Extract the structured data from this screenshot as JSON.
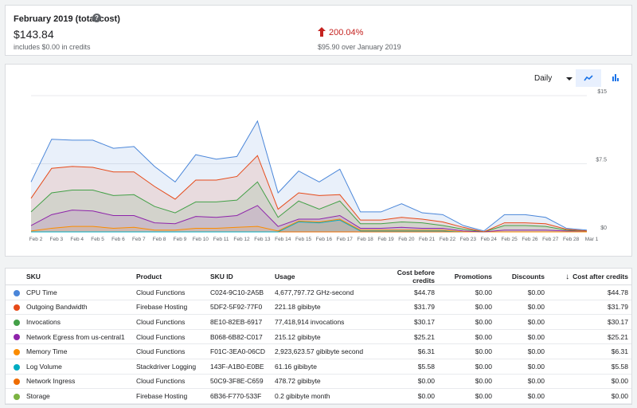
{
  "summary": {
    "title": "February 2019 (total cost)",
    "total": "$143.84",
    "credits_note": "includes $0.00 in credits",
    "trend_percent": "200.04%",
    "trend_note": "$95.90 over January 2019",
    "trend_color": "#c5221f"
  },
  "chart_controls": {
    "period": "Daily",
    "line_view_icon": "line-chart-icon",
    "bar_view_icon": "bar-chart-icon"
  },
  "chart_data": {
    "type": "area",
    "stacked": true,
    "categories": [
      "Feb 2",
      "Feb 3",
      "Feb 4",
      "Feb 5",
      "Feb 6",
      "Feb 7",
      "Feb 8",
      "Feb 9",
      "Feb 10",
      "Feb 11",
      "Feb 12",
      "Feb 13",
      "Feb 14",
      "Feb 15",
      "Feb 16",
      "Feb 17",
      "Feb 18",
      "Feb 19",
      "Feb 20",
      "Feb 21",
      "Feb 22",
      "Feb 23",
      "Feb 24",
      "Feb 25",
      "Feb 26",
      "Feb 27",
      "Feb 28",
      "Mar 1"
    ],
    "ylim": [
      0,
      15
    ],
    "yticks": [
      {
        "value": 0,
        "label": "$0"
      },
      {
        "value": 7.5,
        "label": "$7.5"
      },
      {
        "value": 15,
        "label": "$15"
      }
    ],
    "grid": true,
    "series": [
      {
        "name": "Storage",
        "color": "#7cb342",
        "values": [
          0,
          0,
          0,
          0,
          0,
          0,
          0,
          0,
          0,
          0,
          0,
          0,
          0,
          0,
          0,
          0,
          0,
          0,
          0,
          0,
          0,
          0,
          0,
          0,
          0,
          0,
          0,
          0
        ]
      },
      {
        "name": "Network Ingress",
        "color": "#ef6c00",
        "values": [
          0,
          0,
          0,
          0,
          0,
          0,
          0,
          0,
          0,
          0,
          0,
          0,
          0,
          0,
          0,
          0,
          0,
          0,
          0,
          0,
          0,
          0,
          0,
          0,
          0,
          0,
          0,
          0
        ]
      },
      {
        "name": "Log Volume",
        "color": "#00acc1",
        "values": [
          0,
          0,
          0,
          0,
          0,
          0,
          0,
          0,
          0,
          0,
          0,
          0,
          0,
          1.1,
          1.0,
          1.3,
          0.1,
          0.1,
          0.1,
          0.1,
          0.1,
          0,
          0,
          0,
          0,
          0,
          0,
          0
        ]
      },
      {
        "name": "Memory Time",
        "color": "#fb8c00",
        "values": [
          0.1,
          0.4,
          0.6,
          0.6,
          0.4,
          0.5,
          0.2,
          0.2,
          0.4,
          0.4,
          0.5,
          0.6,
          0.1,
          0.1,
          0.1,
          0.1,
          0.1,
          0.1,
          0.1,
          0.1,
          0.1,
          0,
          0,
          0,
          0,
          0,
          0,
          0
        ]
      },
      {
        "name": "Network Egress from us-central1",
        "color": "#8e24aa",
        "values": [
          0.6,
          1.5,
          1.8,
          1.7,
          1.4,
          1.3,
          0.8,
          0.7,
          1.3,
          1.2,
          1.3,
          2.3,
          0.5,
          0.2,
          0.3,
          0.4,
          0.2,
          0.2,
          0.3,
          0.2,
          0.2,
          0.1,
          0,
          0.2,
          0.2,
          0.2,
          0.1,
          0.1
        ]
      },
      {
        "name": "Invocations",
        "color": "#43a047",
        "values": [
          1.5,
          2.4,
          2.2,
          2.3,
          2.2,
          2.3,
          1.8,
          1.2,
          1.6,
          1.7,
          1.7,
          2.6,
          1.0,
          2.0,
          1.1,
          1.6,
          0.5,
          0.5,
          0.6,
          0.6,
          0.3,
          0.2,
          0,
          0.5,
          0.5,
          0.4,
          0.1,
          0
        ]
      },
      {
        "name": "Outgoing Bandwidth",
        "color": "#e64a19",
        "values": [
          1.5,
          2.7,
          2.6,
          2.5,
          2.6,
          2.5,
          2.2,
          1.5,
          2.4,
          2.4,
          2.6,
          2.9,
          0.9,
          0.9,
          1.5,
          0.7,
          0.4,
          0.4,
          0.5,
          0.4,
          0.4,
          0.2,
          0,
          0.3,
          0.3,
          0.3,
          0.1,
          0
        ]
      },
      {
        "name": "CPU Time",
        "color": "#4a86d9",
        "values": [
          1.8,
          3.2,
          2.9,
          3.0,
          2.6,
          2.8,
          2.2,
          1.9,
          2.8,
          2.3,
          2.2,
          3.8,
          1.8,
          2.4,
          1.5,
          2.8,
          0.9,
          0.9,
          1.5,
          0.7,
          0.8,
          0.2,
          0.1,
          0.9,
          0.9,
          0.7,
          0.1,
          0.1
        ]
      }
    ]
  },
  "table": {
    "sort_icon": "arrow-down-icon",
    "headers": {
      "sku": "SKU",
      "product": "Product",
      "sku_id": "SKU ID",
      "usage": "Usage",
      "cost_before": "Cost before credits",
      "promotions": "Promotions",
      "discounts": "Discounts",
      "cost_after": "Cost after credits"
    },
    "rows": [
      {
        "color": "#4a86d9",
        "sku": "CPU Time",
        "product": "Cloud Functions",
        "sku_id": "C024-9C10-2A5B",
        "usage": "4,677,797.72 GHz-second",
        "cost_before": "$44.78",
        "promotions": "$0.00",
        "discounts": "$0.00",
        "cost_after": "$44.78"
      },
      {
        "color": "#e64a19",
        "sku": "Outgoing Bandwidth",
        "product": "Firebase Hosting",
        "sku_id": "5DF2-5F92-77F0",
        "usage": "221.18 gibibyte",
        "cost_before": "$31.79",
        "promotions": "$0.00",
        "discounts": "$0.00",
        "cost_after": "$31.79"
      },
      {
        "color": "#43a047",
        "sku": "Invocations",
        "product": "Cloud Functions",
        "sku_id": "8E10-82EB-6917",
        "usage": "77,418,914 invocations",
        "cost_before": "$30.17",
        "promotions": "$0.00",
        "discounts": "$0.00",
        "cost_after": "$30.17"
      },
      {
        "color": "#8e24aa",
        "sku": "Network Egress from us-central1",
        "product": "Cloud Functions",
        "sku_id": "B068-6B82-C017",
        "usage": "215.12 gibibyte",
        "cost_before": "$25.21",
        "promotions": "$0.00",
        "discounts": "$0.00",
        "cost_after": "$25.21"
      },
      {
        "color": "#fb8c00",
        "sku": "Memory Time",
        "product": "Cloud Functions",
        "sku_id": "F01C-3EA0-06CD",
        "usage": "2,923,623.57 gibibyte second",
        "cost_before": "$6.31",
        "promotions": "$0.00",
        "discounts": "$0.00",
        "cost_after": "$6.31"
      },
      {
        "color": "#00acc1",
        "sku": "Log Volume",
        "product": "Stackdriver Logging",
        "sku_id": "143F-A1B0-E0BE",
        "usage": "61.16 gibibyte",
        "cost_before": "$5.58",
        "promotions": "$0.00",
        "discounts": "$0.00",
        "cost_after": "$5.58"
      },
      {
        "color": "#ef6c00",
        "sku": "Network Ingress",
        "product": "Cloud Functions",
        "sku_id": "50C9-3F8E-C659",
        "usage": "478.72 gibibyte",
        "cost_before": "$0.00",
        "promotions": "$0.00",
        "discounts": "$0.00",
        "cost_after": "$0.00"
      },
      {
        "color": "#7cb342",
        "sku": "Storage",
        "product": "Firebase Hosting",
        "sku_id": "6B36-F770-533F",
        "usage": "0.2 gibibyte month",
        "cost_before": "$0.00",
        "promotions": "$0.00",
        "discounts": "$0.00",
        "cost_after": "$0.00"
      }
    ]
  }
}
